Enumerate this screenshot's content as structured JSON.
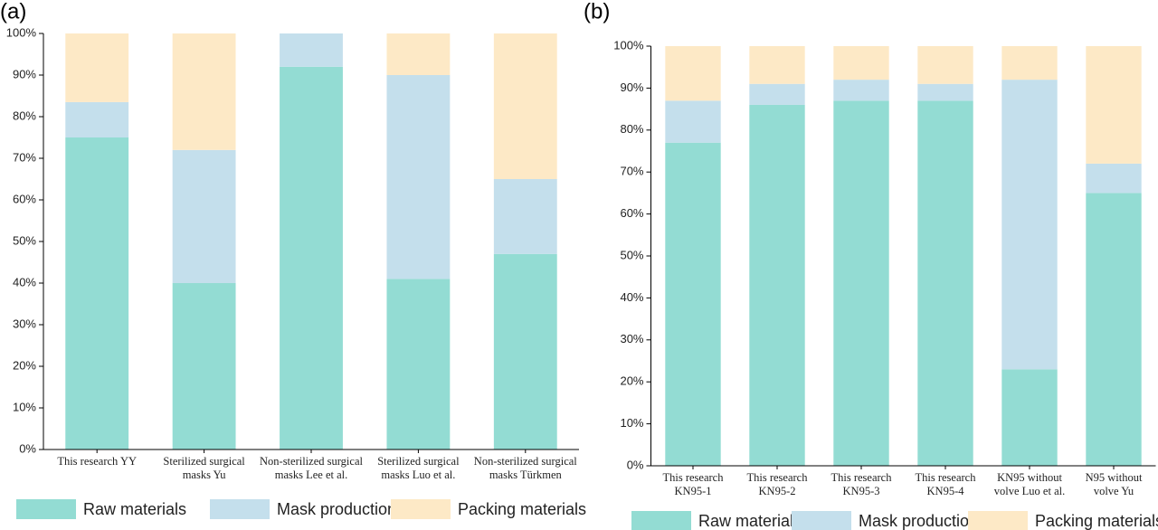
{
  "chart_data": [
    {
      "type": "stacked-bar",
      "label": "(a)",
      "categories": [
        "This research YY",
        "Sterilized surgical\nmasks Yu",
        "Non-sterilized surgical\nmasks Lee et al.",
        "Sterilized surgical\nmasks Luo et al.",
        "Non-sterilized surgical\nmasks Türkmen"
      ],
      "series": [
        {
          "name": "Raw materials",
          "color": "#93dcd3",
          "values": [
            75,
            40,
            92,
            41,
            47
          ]
        },
        {
          "name": "Mask production",
          "color": "#c4dfec",
          "values": [
            8.5,
            32,
            8,
            49,
            18
          ]
        },
        {
          "name": "Packing materials",
          "color": "#fde9c6",
          "values": [
            16.5,
            28,
            0,
            10,
            35
          ]
        }
      ],
      "ylim": [
        0,
        100
      ],
      "yticks": [
        {
          "value": 0,
          "label": "0%"
        },
        {
          "value": 10,
          "label": "10%"
        },
        {
          "value": 20,
          "label": "20%"
        },
        {
          "value": 30,
          "label": "30%"
        },
        {
          "value": 40,
          "label": "40%"
        },
        {
          "value": 50,
          "label": "50%"
        },
        {
          "value": 60,
          "label": "60%"
        },
        {
          "value": 70,
          "label": "70%"
        },
        {
          "value": 80,
          "label": "80%"
        },
        {
          "value": 90,
          "label": "90%"
        },
        {
          "value": 100,
          "label": "100%"
        }
      ]
    },
    {
      "type": "stacked-bar",
      "label": "(b)",
      "categories": [
        "This research\nKN95-1",
        "This research\nKN95-2",
        "This research\nKN95-3",
        "This research\nKN95-4",
        "KN95 without\nvolve Luo et al.",
        "N95 without\nvolve Yu"
      ],
      "series": [
        {
          "name": "Raw materials",
          "color": "#93dcd3",
          "values": [
            77,
            86,
            87,
            87,
            23,
            65
          ]
        },
        {
          "name": "Mask production",
          "color": "#c4dfec",
          "values": [
            10,
            5,
            5,
            4,
            69,
            7
          ]
        },
        {
          "name": "Packing materials",
          "color": "#fde9c6",
          "values": [
            13,
            9,
            8,
            9,
            8,
            28
          ]
        }
      ],
      "ylim": [
        0,
        100
      ],
      "yticks": [
        {
          "value": 0,
          "label": "0%"
        },
        {
          "value": 10,
          "label": "10%"
        },
        {
          "value": 20,
          "label": "20%"
        },
        {
          "value": 30,
          "label": "30%"
        },
        {
          "value": 40,
          "label": "40%"
        },
        {
          "value": 50,
          "label": "50%"
        },
        {
          "value": 60,
          "label": "60%"
        },
        {
          "value": 70,
          "label": "70%"
        },
        {
          "value": 80,
          "label": "80%"
        },
        {
          "value": 90,
          "label": "90%"
        },
        {
          "value": 100,
          "label": "100%"
        }
      ]
    }
  ]
}
